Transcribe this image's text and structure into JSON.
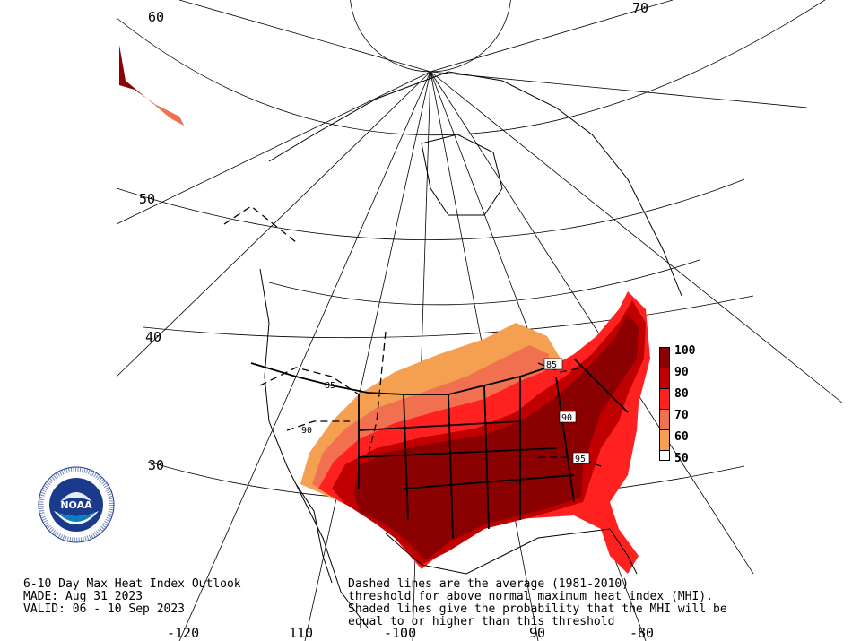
{
  "title": {
    "line1": "6-10 Day Max Heat Index Outlook",
    "line2": "MADE: Aug 31 2023",
    "line3": "VALID: 06 - 10 Sep 2023"
  },
  "note": {
    "line1": "Dashed lines are the average (1981-2010)",
    "line2": "threshold for above normal maximum heat index (MHI).",
    "line3": "Shaded lines give the probability that the MHI will be",
    "line4": "equal to or higher than this threshold"
  },
  "legend": {
    "labels": [
      "100",
      "90",
      "80",
      "70",
      "60",
      "50"
    ],
    "colors": [
      "#8b0000",
      "#c00000",
      "#ff2020",
      "#f07050",
      "#f4a050",
      "#ffffff"
    ]
  },
  "latitude_labels": [
    "60",
    "50",
    "40",
    "30"
  ],
  "longitude_labels": [
    "-120",
    "110",
    "-100",
    "90",
    "-80",
    "70"
  ],
  "contour_labels": [
    "85",
    "90",
    "85",
    "90",
    "95"
  ],
  "logo": {
    "name": "NOAA",
    "ring_text": "NATIONAL OCEANIC AND ATMOSPHERIC ADMINISTRATION · U.S. DEPARTMENT OF COMMERCE"
  },
  "colors": {
    "prob_100": "#8b0000",
    "prob_90": "#c00000",
    "prob_80": "#ff2020",
    "prob_70": "#f07050",
    "prob_60": "#f4a050"
  }
}
